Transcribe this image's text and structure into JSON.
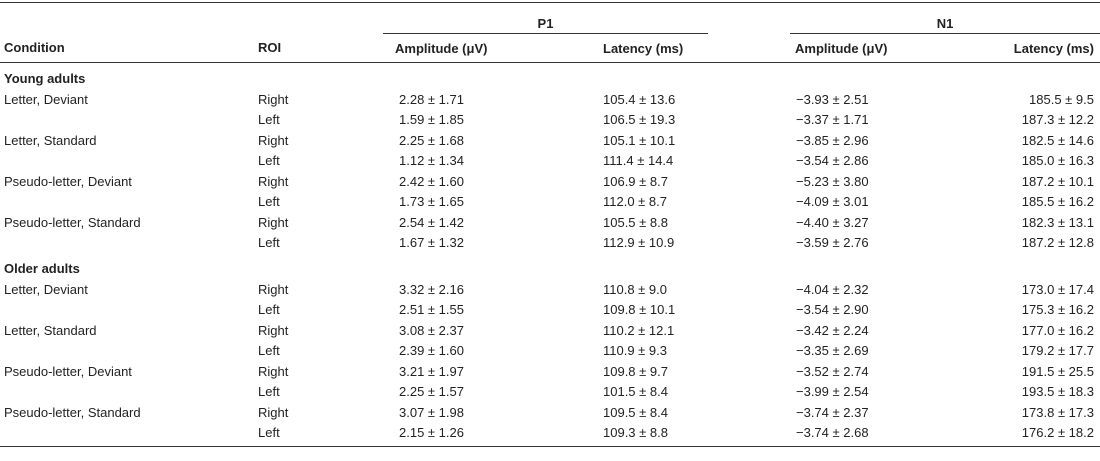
{
  "table": {
    "group_headers": {
      "p1": "P1",
      "n1": "N1"
    },
    "column_headers": {
      "condition": "Condition",
      "roi": "ROI",
      "p1_amplitude": "Amplitude (μV)",
      "p1_latency": "Latency (ms)",
      "n1_amplitude": "Amplitude (μV)",
      "n1_latency": "Latency (ms)"
    },
    "sections": [
      {
        "title": "Young adults",
        "rows": [
          {
            "condition": "Letter, Deviant",
            "roi": "Right",
            "p1_amp": "2.28 ± 1.71",
            "p1_lat": "105.4 ± 13.6",
            "n1_amp": "−3.93 ± 2.51",
            "n1_lat": "185.5 ± 9.5"
          },
          {
            "condition": "",
            "roi": "Left",
            "p1_amp": "1.59 ± 1.85",
            "p1_lat": "106.5 ± 19.3",
            "n1_amp": "−3.37 ± 1.71",
            "n1_lat": "187.3 ± 12.2"
          },
          {
            "condition": "Letter, Standard",
            "roi": "Right",
            "p1_amp": "2.25 ± 1.68",
            "p1_lat": "105.1 ± 10.1",
            "n1_amp": "−3.85 ± 2.96",
            "n1_lat": "182.5 ± 14.6"
          },
          {
            "condition": "",
            "roi": "Left",
            "p1_amp": "1.12 ± 1.34",
            "p1_lat": "111.4 ± 14.4",
            "n1_amp": "−3.54 ± 2.86",
            "n1_lat": "185.0 ± 16.3"
          },
          {
            "condition": "Pseudo-letter, Deviant",
            "roi": "Right",
            "p1_amp": "2.42 ± 1.60",
            "p1_lat": "106.9 ± 8.7",
            "n1_amp": "−5.23 ± 3.80",
            "n1_lat": "187.2 ± 10.1"
          },
          {
            "condition": "",
            "roi": "Left",
            "p1_amp": "1.73 ± 1.65",
            "p1_lat": "112.0 ± 8.7",
            "n1_amp": "−4.09 ± 3.01",
            "n1_lat": "185.5 ± 16.2"
          },
          {
            "condition": "Pseudo-letter, Standard",
            "roi": "Right",
            "p1_amp": "2.54 ± 1.42",
            "p1_lat": "105.5 ± 8.8",
            "n1_amp": "−4.40 ± 3.27",
            "n1_lat": "182.3 ± 13.1"
          },
          {
            "condition": "",
            "roi": "Left",
            "p1_amp": "1.67 ± 1.32",
            "p1_lat": "112.9 ± 10.9",
            "n1_amp": "−3.59 ± 2.76",
            "n1_lat": "187.2 ± 12.8"
          }
        ]
      },
      {
        "title": "Older adults",
        "rows": [
          {
            "condition": "Letter, Deviant",
            "roi": "Right",
            "p1_amp": "3.32 ± 2.16",
            "p1_lat": "110.8 ± 9.0",
            "n1_amp": "−4.04 ± 2.32",
            "n1_lat": "173.0 ± 17.4"
          },
          {
            "condition": "",
            "roi": "Left",
            "p1_amp": "2.51 ± 1.55",
            "p1_lat": "109.8 ± 10.1",
            "n1_amp": "−3.54 ± 2.90",
            "n1_lat": "175.3 ± 16.2"
          },
          {
            "condition": "Letter, Standard",
            "roi": "Right",
            "p1_amp": "3.08 ± 2.37",
            "p1_lat": "110.2 ± 12.1",
            "n1_amp": "−3.42 ± 2.24",
            "n1_lat": "177.0 ± 16.2"
          },
          {
            "condition": "",
            "roi": "Left",
            "p1_amp": "2.39 ± 1.60",
            "p1_lat": "110.9 ± 9.3",
            "n1_amp": "−3.35 ± 2.69",
            "n1_lat": "179.2 ± 17.7"
          },
          {
            "condition": "Pseudo-letter, Deviant",
            "roi": "Right",
            "p1_amp": "3.21 ± 1.97",
            "p1_lat": "109.8 ± 9.7",
            "n1_amp": "−3.52 ± 2.74",
            "n1_lat": "191.5 ± 25.5"
          },
          {
            "condition": "",
            "roi": "Left",
            "p1_amp": "2.25 ± 1.57",
            "p1_lat": "101.5 ± 8.4",
            "n1_amp": "−3.99 ± 2.54",
            "n1_lat": "193.5 ± 18.3"
          },
          {
            "condition": "Pseudo-letter, Standard",
            "roi": "Right",
            "p1_amp": "3.07 ± 1.98",
            "p1_lat": "109.5 ± 8.4",
            "n1_amp": "−3.74 ± 2.37",
            "n1_lat": "173.8 ± 17.3"
          },
          {
            "condition": "",
            "roi": "Left",
            "p1_amp": "2.15 ± 1.26",
            "p1_lat": "109.3 ± 8.8",
            "n1_amp": "−3.74 ± 2.68",
            "n1_lat": "176.2 ± 18.2"
          }
        ]
      }
    ]
  }
}
